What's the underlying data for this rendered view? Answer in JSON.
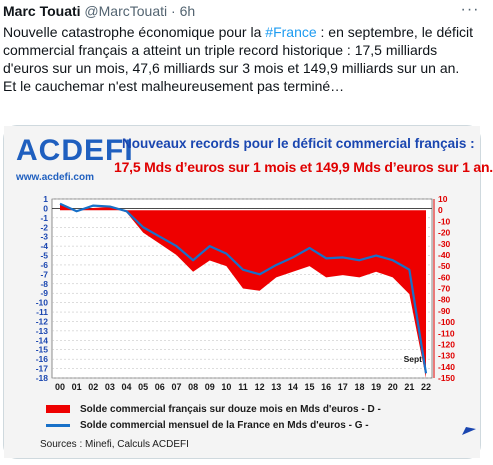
{
  "tweet": {
    "author_name": "Marc Touati",
    "handle": "@MarcTouati",
    "separator": "·",
    "time": "6h",
    "more": "···",
    "text_before_hashtag": "Nouvelle catastrophe économique pour la ",
    "hashtag": "#France",
    "text_after_hashtag": " : en septembre, le déficit commercial français a atteint un triple record historique : 17,5 milliards d'euros sur un mois, 47,6 milliards sur 3 mois et 149,9 milliards sur un an.",
    "text_line2": "Et le cauchemar n'est malheureusement pas terminé…"
  },
  "image": {
    "logo_text": "ACDEFI",
    "logo_url": "www.acdefi.com",
    "title_line1": "Nouveaux records pour le déficit commercial français :",
    "title_line2": "17,5 Mds d’euros sur 1 mois et 149,9 Mds d’euros sur 1 an.",
    "legend_red": "Solde commercial français sur douze mois en Mds d'euros - D -",
    "legend_blue": "Solde commercial mensuel de la France en Mds d'euros - G -",
    "sources": "Sources : Minefi, Calculs ACDEFI",
    "colors": {
      "red": "#ee0000",
      "blue": "#1870c8",
      "title_blue": "#1a46b0",
      "hashtag": "#1d9bf0"
    }
  },
  "chart_data": {
    "type": "area",
    "annotation": "Sept",
    "x": [
      "00",
      "01",
      "02",
      "03",
      "04",
      "05",
      "06",
      "07",
      "08",
      "09",
      "10",
      "11",
      "12",
      "13",
      "14",
      "15",
      "16",
      "17",
      "18",
      "19",
      "20",
      "21",
      "22"
    ],
    "left_axis": {
      "range": [
        -18,
        1
      ],
      "ticks": [
        "1",
        "0",
        "-1",
        "-2",
        "-3",
        "-4",
        "-5",
        "-6",
        "-7",
        "-8",
        "-9",
        "-10",
        "-11",
        "-12",
        "-13",
        "-14",
        "-15",
        "-16",
        "-17",
        "-18"
      ]
    },
    "right_axis": {
      "range": [
        -150,
        10
      ],
      "ticks": [
        "10",
        "0",
        "-10",
        "-20",
        "-30",
        "-40",
        "-50",
        "-60",
        "-70",
        "-80",
        "-90",
        "-100",
        "-110",
        "-120",
        "-130",
        "-140",
        "-150"
      ]
    },
    "series": [
      {
        "name": "Solde commercial français sur douze mois en Mds d'euros - D -",
        "axis": "right",
        "values": [
          5,
          0,
          2,
          3,
          -2,
          -20,
          -30,
          -40,
          -55,
          -45,
          -50,
          -70,
          -72,
          -60,
          -55,
          -50,
          -60,
          -58,
          -60,
          -55,
          -60,
          -75,
          -150
        ]
      },
      {
        "name": "Solde commercial mensuel de la France en Mds d'euros - G -",
        "axis": "left",
        "values": [
          0.5,
          -0.3,
          0.3,
          0.2,
          -0.3,
          -2.0,
          -3.0,
          -4.0,
          -5.5,
          -4.0,
          -4.8,
          -6.5,
          -7.0,
          -6.0,
          -5.2,
          -4.2,
          -5.3,
          -5.2,
          -5.5,
          -5.0,
          -5.5,
          -6.5,
          -17.5
        ]
      }
    ]
  }
}
